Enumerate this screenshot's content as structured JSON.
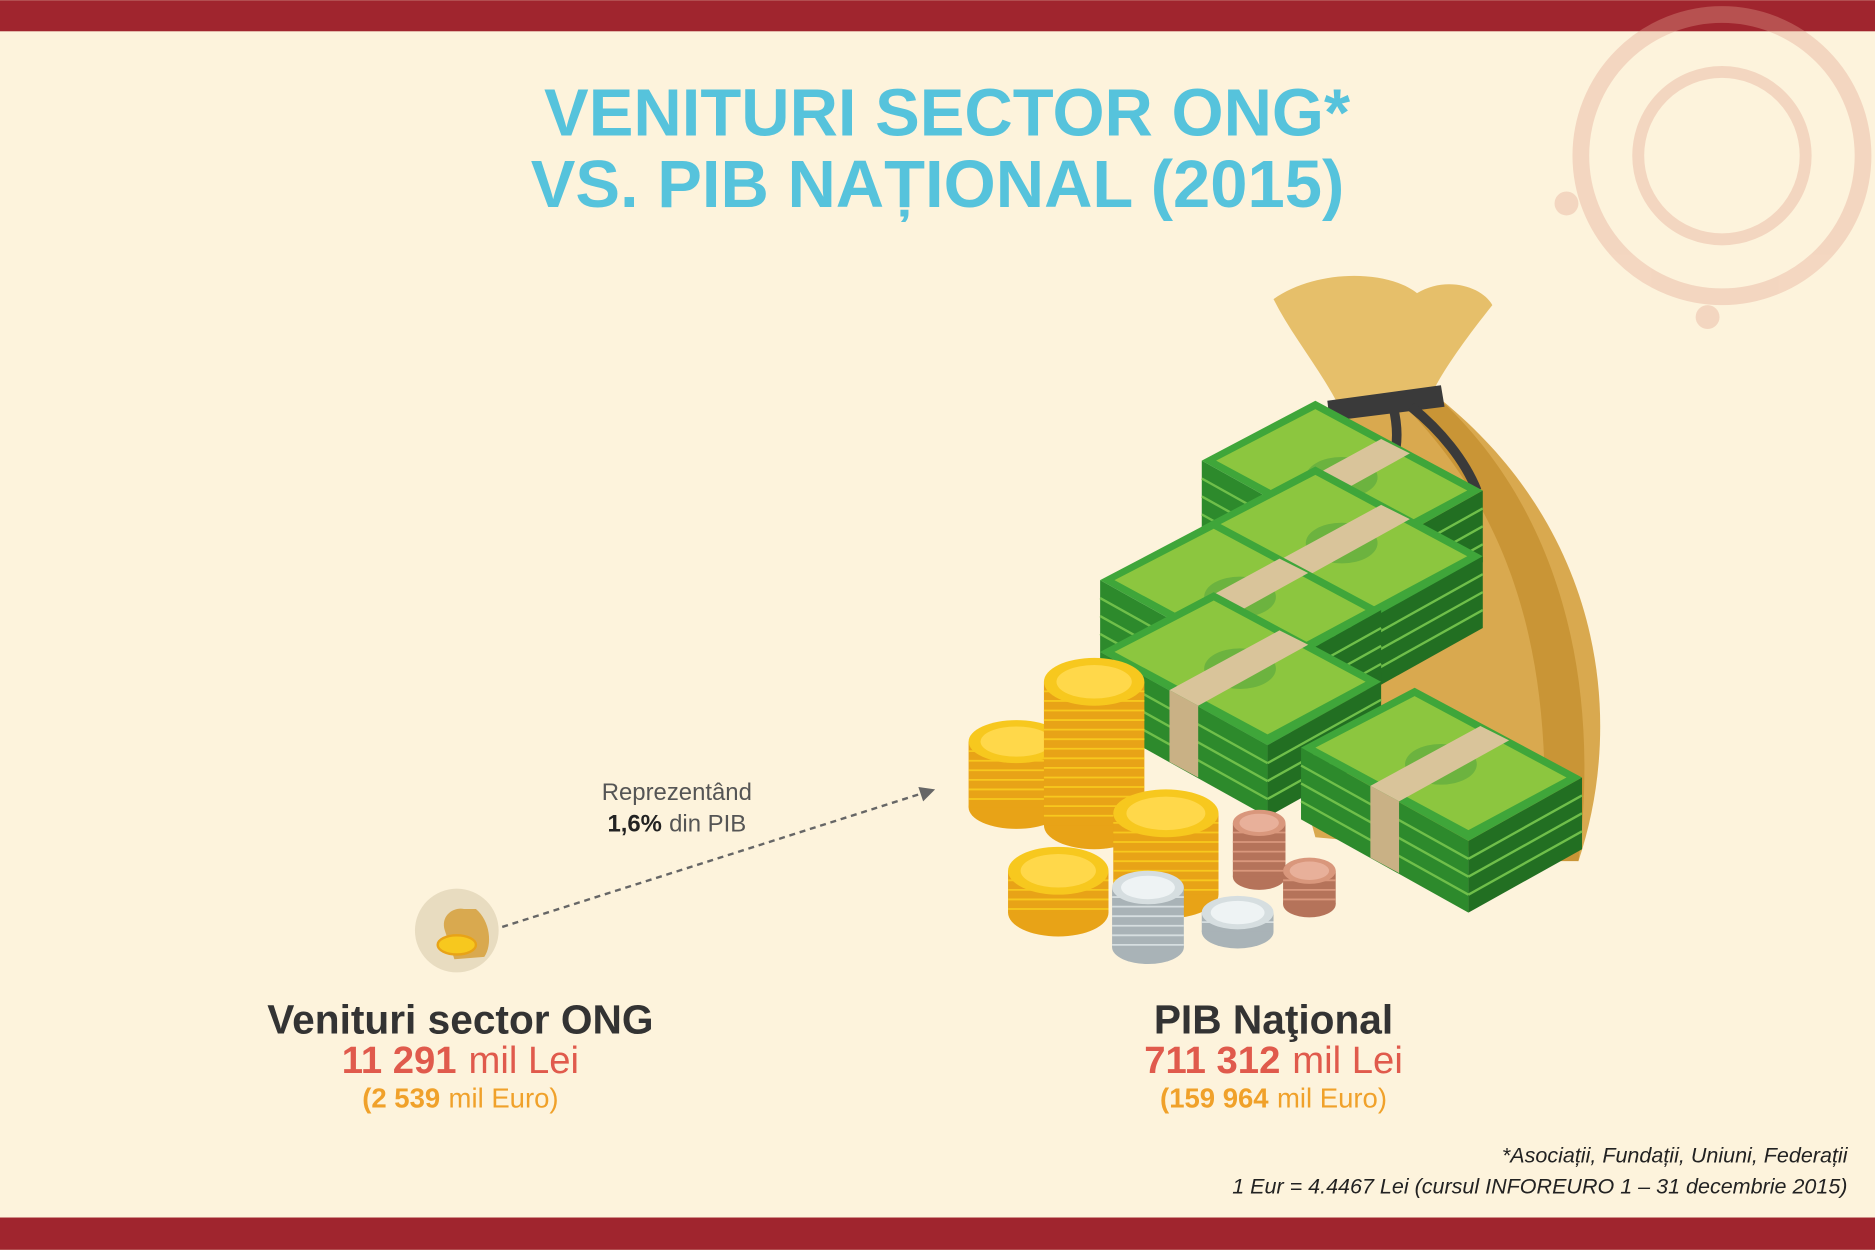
{
  "title": {
    "line1": "VENITURI SECTOR ONG*",
    "line2": "VS. PIB NAȚIONAL (2015)"
  },
  "annotation": {
    "line1": "Reprezentând",
    "share": "1,6%",
    "rest": "din PIB"
  },
  "left": {
    "label": "Venituri sector ONG",
    "lei_amount": "11 291",
    "lei_unit": "mil Lei",
    "euro_amount": "(2 539",
    "euro_unit": "mil Euro)"
  },
  "right": {
    "label": "PIB Naţional",
    "lei_amount": "711 312",
    "lei_unit": "mil Lei",
    "euro_amount": "(159 964",
    "euro_unit": "mil Euro)"
  },
  "footnote": {
    "line1": "*Asociații, Fundații, Uniuni, Federații",
    "line2": "1 Eur = 4.4467 Lei (cursul INFOREURO 1 – 31 decembrie 2015)"
  }
}
